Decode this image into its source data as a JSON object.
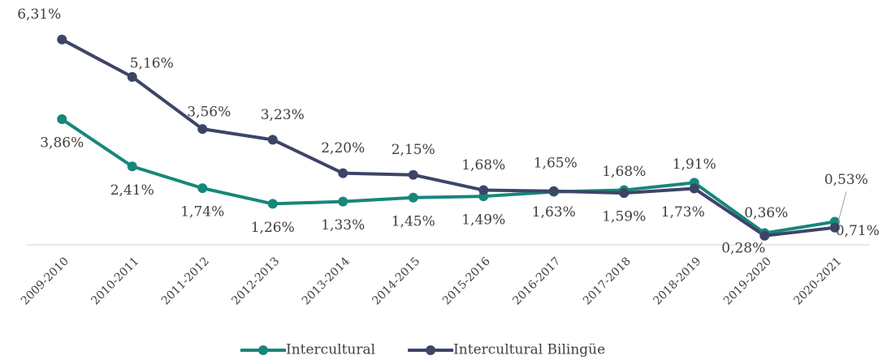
{
  "chart_data": {
    "type": "line",
    "categories": [
      "2009-2010",
      "2010-2011",
      "2011-2012",
      "2012-2013",
      "2013-2014",
      "2014-2015",
      "2015-2016",
      "2016-2017",
      "2017-2018",
      "2018-2019",
      "2019-2020",
      "2020-2021"
    ],
    "series": [
      {
        "name": "Intercultural",
        "color": "#16877a",
        "values": [
          3.86,
          2.41,
          1.74,
          1.26,
          1.33,
          1.45,
          1.49,
          1.63,
          1.68,
          1.91,
          0.36,
          0.71
        ],
        "value_labels": [
          "3,86%",
          "2,41%",
          "1,74%",
          "1,26%",
          "1,33%",
          "1,45%",
          "1,49%",
          "1,63%",
          "1,68%",
          "1,91%",
          "0,36%",
          "0,71%"
        ]
      },
      {
        "name": "Intercultural Bilingüe",
        "color": "#3e4468",
        "values": [
          6.31,
          5.16,
          3.56,
          3.23,
          2.2,
          2.15,
          1.68,
          1.65,
          1.59,
          1.73,
          0.28,
          0.53
        ],
        "value_labels": [
          "6,31%",
          "5,16%",
          "3,56%",
          "3,23%",
          "2,20%",
          "2,15%",
          "1,68%",
          "1,65%",
          "1,59%",
          "1,73%",
          "0,28%",
          "0,53%"
        ]
      }
    ],
    "ylim": [
      0,
      7
    ],
    "legend": "bottom"
  }
}
